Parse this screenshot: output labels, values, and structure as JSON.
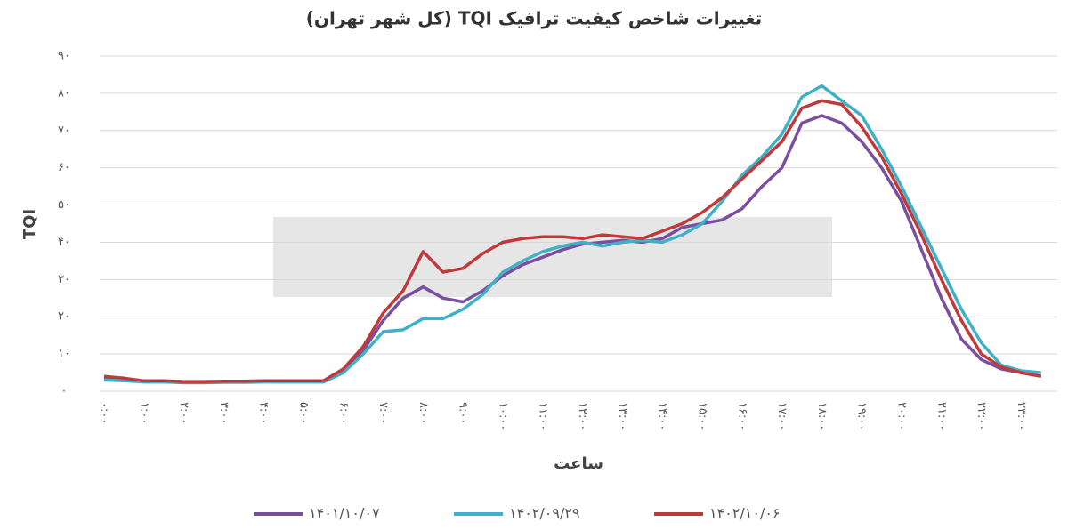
{
  "chart_data": {
    "type": "line",
    "title": "تغییرات شاخص کیفیت ترافیک TQI (کل شهر تهران)",
    "y_label": "TQI",
    "x_label": "ساعت",
    "categories": [
      "۰:۰۰",
      null,
      "۱:۰۰",
      null,
      "۲:۰۰",
      null,
      "۳:۰۰",
      null,
      "۴:۰۰",
      null,
      "۵:۰۰",
      null,
      "۶:۰۰",
      null,
      "۷:۰۰",
      null,
      "۸:۰۰",
      null,
      "۹:۰۰",
      null,
      "۱۰:۰۰",
      null,
      "۱۱:۰۰",
      null,
      "۱۲:۰۰",
      null,
      "۱۳:۰۰",
      null,
      "۱۴:۰۰",
      null,
      "۱۵:۰۰",
      null,
      "۱۶:۰۰",
      null,
      "۱۷:۰۰",
      null,
      "۱۸:۰۰",
      null,
      "۱۹:۰۰",
      null,
      "۲۰:۰۰",
      null,
      "۲۱:۰۰",
      null,
      "۲۲:۰۰",
      null,
      "۲۳:۰۰",
      null
    ],
    "ylim": [
      0,
      90
    ],
    "yticks": [
      {
        "value": 0,
        "label": "۰"
      },
      {
        "value": 10,
        "label": "۱۰"
      },
      {
        "value": 20,
        "label": "۲۰"
      },
      {
        "value": 30,
        "label": "۳۰"
      },
      {
        "value": 40,
        "label": "۴۰"
      },
      {
        "value": 50,
        "label": "۵۰"
      },
      {
        "value": 60,
        "label": "۶۰"
      },
      {
        "value": 70,
        "label": "۷۰"
      },
      {
        "value": 80,
        "label": "۸۰"
      },
      {
        "value": 90,
        "label": "۹۰"
      }
    ],
    "grid": true,
    "legend": "bottom",
    "series": [
      {
        "name": "۱۴۰۱/۱۰/۰۷",
        "color": "#7a4fa0",
        "values": [
          3.5,
          3,
          2.5,
          2.5,
          2.3,
          2.3,
          2.4,
          2.4,
          2.5,
          2.5,
          2.5,
          2.5,
          5,
          11,
          19,
          25,
          28,
          25,
          24,
          27,
          31,
          34,
          36,
          38,
          39.5,
          40,
          40.5,
          40,
          41,
          44,
          45,
          46,
          49,
          55,
          60,
          72,
          74,
          72,
          67,
          60,
          51,
          38,
          25,
          14,
          8.5,
          6,
          5,
          4
        ]
      },
      {
        "name": "۱۴۰۲/۰۹/۲۹",
        "color": "#3fb1c6",
        "values": [
          3,
          2.8,
          2.5,
          2.5,
          2.4,
          2.4,
          2.5,
          2.5,
          2.6,
          2.5,
          2.5,
          2.5,
          5,
          10,
          16,
          16.5,
          19.5,
          19.5,
          22,
          26,
          32,
          35,
          37.5,
          39,
          40,
          39,
          40,
          40.5,
          40,
          42,
          45,
          51,
          58,
          63,
          69,
          79,
          82,
          78,
          74,
          65,
          55,
          44,
          33,
          22,
          13,
          7,
          5.5,
          5
        ]
      },
      {
        "name": "۱۴۰۲/۱۰/۰۶",
        "color": "#c0393b",
        "values": [
          4,
          3.5,
          2.8,
          2.8,
          2.6,
          2.6,
          2.7,
          2.7,
          2.8,
          2.8,
          2.8,
          2.8,
          6,
          12,
          21,
          27,
          37.5,
          32,
          33,
          37,
          40,
          41,
          41.5,
          41.5,
          41,
          42,
          41.5,
          41,
          43,
          45,
          48,
          52,
          57,
          62,
          67,
          76,
          78,
          77,
          71,
          63,
          53,
          42,
          30,
          19,
          10,
          6.5,
          5,
          4
        ]
      }
    ]
  }
}
